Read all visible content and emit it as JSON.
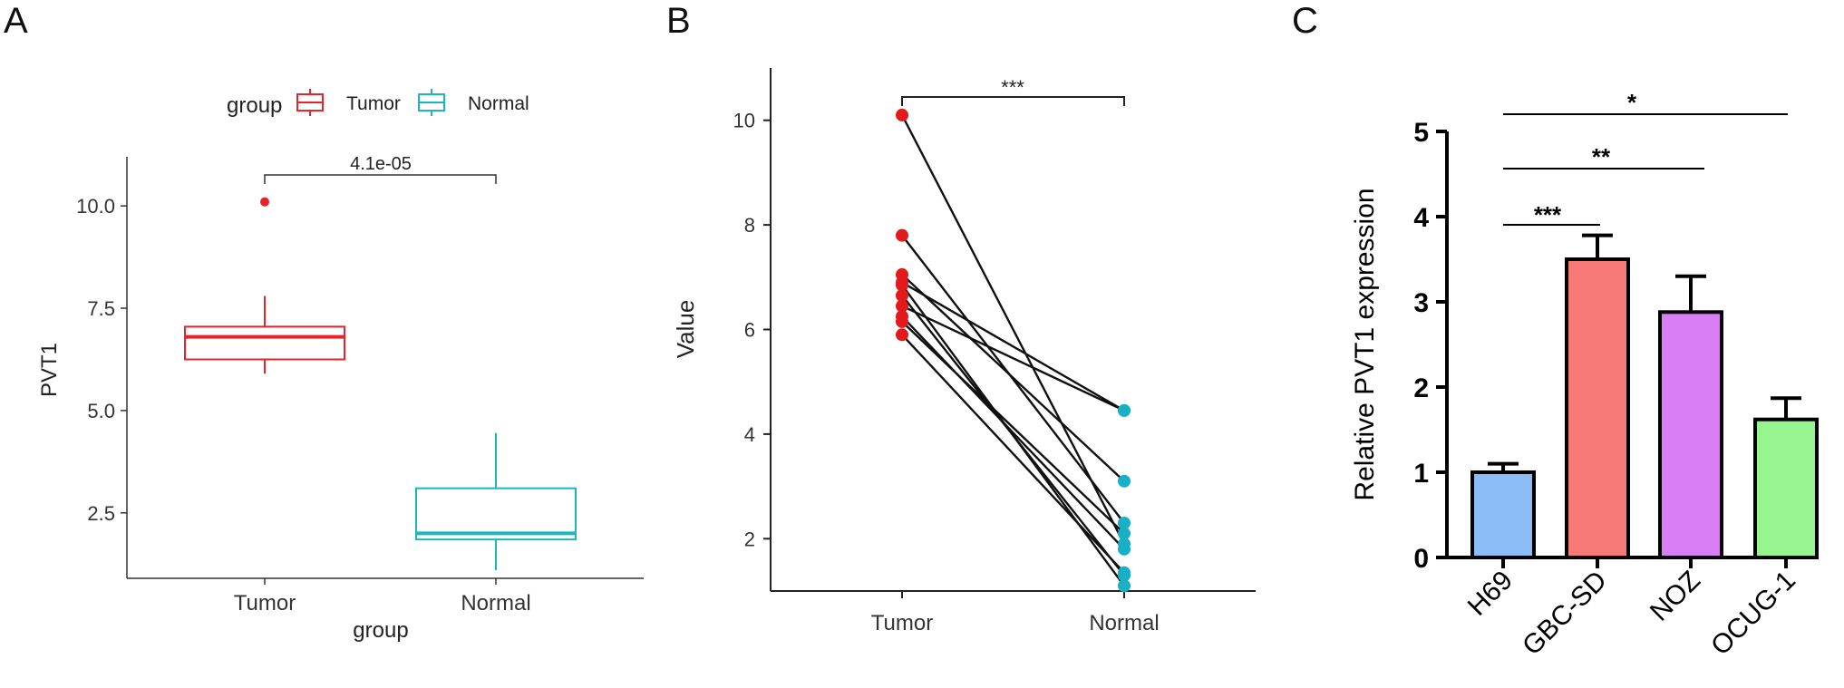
{
  "panels": {
    "a": {
      "letter": "A"
    },
    "b": {
      "letter": "B"
    },
    "c": {
      "letter": "C"
    }
  },
  "colors": {
    "tumor": "#e8242b",
    "normal": "#1eb4c0",
    "panel_b_tumor": "#e31a1c",
    "panel_b_normal": "#18b0c4",
    "h69": "#8bbcf5",
    "gbc": "#f77a78",
    "noz": "#da7ef5",
    "ocug": "#97f58f"
  },
  "chart_data": [
    {
      "type": "box",
      "panel": "A",
      "title": "",
      "xlabel": "group",
      "ylabel": "PVT1",
      "categories": [
        "Tumor",
        "Normal"
      ],
      "legend": {
        "title": "group",
        "entries": [
          "Tumor",
          "Normal"
        ],
        "placement": "top"
      },
      "boxes": [
        {
          "name": "Tumor",
          "whisker_low": 5.9,
          "q1": 6.25,
          "median": 6.8,
          "q3": 7.05,
          "whisker_high": 7.8,
          "outliers": [
            10.1
          ]
        },
        {
          "name": "Normal",
          "whisker_low": 1.1,
          "q1": 1.85,
          "median": 2.0,
          "q3": 3.1,
          "whisker_high": 4.45,
          "outliers": []
        }
      ],
      "yticks": [
        "2.5",
        "5.0",
        "7.5",
        "10.0"
      ],
      "ylim": [
        0.9,
        11.2
      ],
      "annotation": "4.1e-05"
    },
    {
      "type": "paired-line",
      "panel": "B",
      "title": "",
      "xlabel": "",
      "ylabel": "Value",
      "categories": [
        "Tumor",
        "Normal"
      ],
      "pairs": [
        [
          10.1,
          1.9
        ],
        [
          7.8,
          2.3
        ],
        [
          7.05,
          3.1
        ],
        [
          6.9,
          4.45
        ],
        [
          6.85,
          1.1
        ],
        [
          6.65,
          1.3
        ],
        [
          6.45,
          4.45
        ],
        [
          6.25,
          1.8
        ],
        [
          6.15,
          2.1
        ],
        [
          5.9,
          1.35
        ]
      ],
      "yticks": [
        "2",
        "4",
        "6",
        "8",
        "10"
      ],
      "ylim": [
        1,
        11
      ],
      "annotation": "***"
    },
    {
      "type": "bar",
      "panel": "C",
      "title": "",
      "xlabel": "",
      "ylabel": "Relative PVT1 expression",
      "categories": [
        "H69",
        "GBC-SD",
        "NOZ",
        "OCUG-1"
      ],
      "values": [
        1.0,
        3.5,
        2.88,
        1.62
      ],
      "errors": [
        0.1,
        0.28,
        0.42,
        0.25
      ],
      "yticks": [
        "0",
        "1",
        "2",
        "3",
        "4",
        "5"
      ],
      "ylim": [
        0,
        5
      ],
      "significance": [
        "***",
        "**",
        "*"
      ]
    }
  ]
}
